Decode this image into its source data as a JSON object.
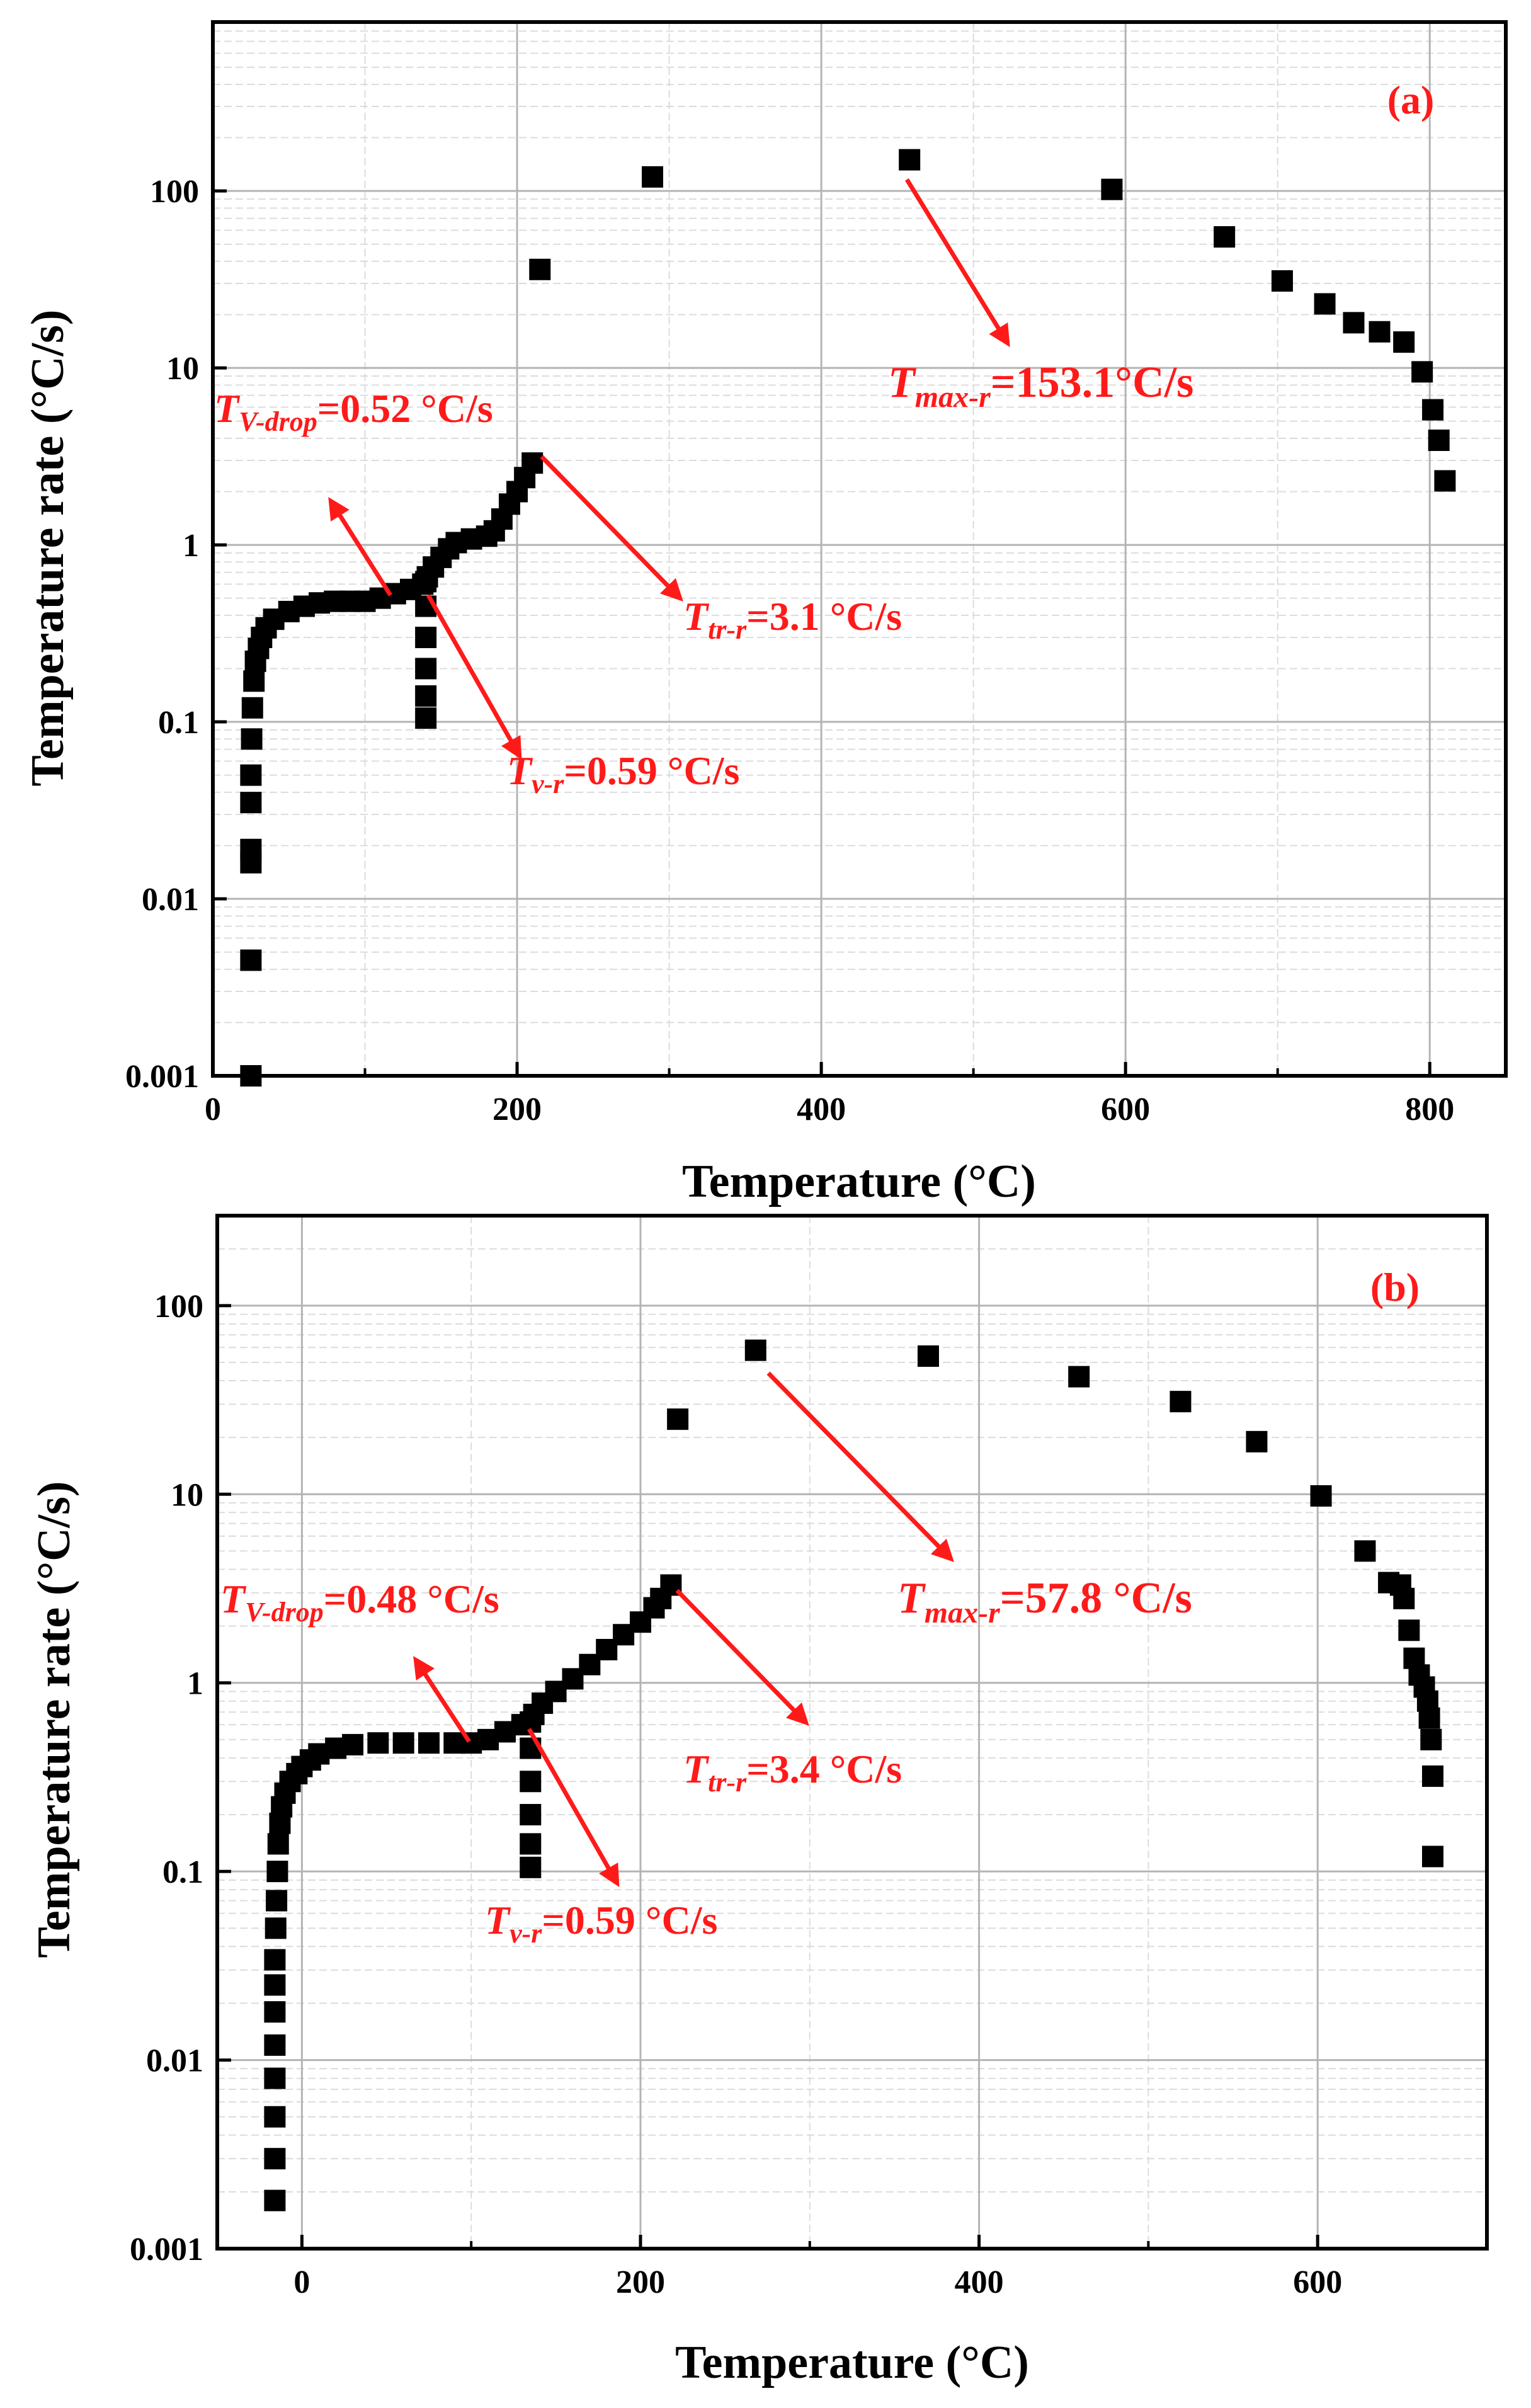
{
  "chart_data": [
    {
      "panel": "(a)",
      "type": "scatter",
      "title": "",
      "xlabel": "Temperature (°C)",
      "ylabel": "Temperature rate (°C/s)",
      "xlim": [
        0,
        850
      ],
      "yscale": "log",
      "ylim": [
        0.001,
        900
      ],
      "xticks": [
        0,
        200,
        400,
        600,
        800
      ],
      "yticks": [
        0.001,
        0.01,
        0.1,
        1,
        10,
        100
      ],
      "ytick_labels": [
        "0.001",
        "0.01",
        "0.1",
        "1",
        "10",
        "100"
      ],
      "grid": true,
      "series": [
        {
          "name": "Temperature rate",
          "marker": "square",
          "points": [
            [
              25,
              0.001
            ],
            [
              25,
              0.0045
            ],
            [
              25,
              0.016
            ],
            [
              25,
              0.019
            ],
            [
              25,
              0.035
            ],
            [
              25,
              0.05
            ],
            [
              25.5,
              0.08
            ],
            [
              26,
              0.12
            ],
            [
              27,
              0.17
            ],
            [
              28,
              0.22
            ],
            [
              30,
              0.26
            ],
            [
              32,
              0.3
            ],
            [
              35,
              0.34
            ],
            [
              40,
              0.38
            ],
            [
              50,
              0.42
            ],
            [
              60,
              0.45
            ],
            [
              70,
              0.47
            ],
            [
              80,
              0.48
            ],
            [
              90,
              0.48
            ],
            [
              100,
              0.48
            ],
            [
              110,
              0.5
            ],
            [
              120,
              0.53
            ],
            [
              130,
              0.56
            ],
            [
              138,
              0.6
            ],
            [
              140,
              0.62
            ],
            [
              140,
              0.45
            ],
            [
              140,
              0.3
            ],
            [
              140,
              0.2
            ],
            [
              140,
              0.14
            ],
            [
              140,
              0.105
            ],
            [
              141,
              0.66
            ],
            [
              145,
              0.75
            ],
            [
              150,
              0.85
            ],
            [
              155,
              0.95
            ],
            [
              160,
              1.03
            ],
            [
              170,
              1.08
            ],
            [
              180,
              1.12
            ],
            [
              185,
              1.2
            ],
            [
              190,
              1.4
            ],
            [
              195,
              1.7
            ],
            [
              200,
              2.0
            ],
            [
              205,
              2.4
            ],
            [
              210,
              2.9
            ],
            [
              215,
              36
            ],
            [
              289,
              120
            ],
            [
              458,
              150
            ],
            [
              591,
              102
            ],
            [
              665,
              55
            ],
            [
              703,
              31
            ],
            [
              731,
              23
            ],
            [
              750,
              18
            ],
            [
              767,
              16
            ],
            [
              783,
              14
            ],
            [
              795,
              9.5
            ],
            [
              802,
              5.8
            ],
            [
              806,
              3.9
            ],
            [
              810,
              2.3
            ]
          ]
        }
      ],
      "annotations": [
        {
          "symbol": "T",
          "subscript": "V-drop",
          "value": "=0.52 °C/s"
        },
        {
          "symbol": "T",
          "subscript": "tr-r",
          "value": "=3.1 °C/s"
        },
        {
          "symbol": "T",
          "subscript": "v-r",
          "value": "=0.59 °C/s"
        },
        {
          "symbol": "T",
          "subscript": "max-r",
          "value": "=153.1°C/s"
        }
      ]
    },
    {
      "panel": "(b)",
      "type": "scatter",
      "title": "",
      "xlabel": "Temperature (°C)",
      "ylabel": "Temperature rate (°C/s)",
      "xlim": [
        -50,
        700
      ],
      "yscale": "log",
      "ylim": [
        0.001,
        300
      ],
      "xticks": [
        0,
        200,
        400,
        600
      ],
      "yticks": [
        0.001,
        0.01,
        0.1,
        1,
        10,
        100
      ],
      "ytick_labels": [
        "0.001",
        "0.01",
        "0.1",
        "1",
        "10",
        "100"
      ],
      "grid": true,
      "series": [
        {
          "name": "Temperature rate",
          "marker": "square",
          "points": [
            [
              -16,
              0.0018
            ],
            [
              -16,
              0.003
            ],
            [
              -16,
              0.005
            ],
            [
              -16,
              0.008
            ],
            [
              -16,
              0.012
            ],
            [
              -16,
              0.018
            ],
            [
              -16,
              0.025
            ],
            [
              -16,
              0.034
            ],
            [
              -15.5,
              0.05
            ],
            [
              -15,
              0.07
            ],
            [
              -14.5,
              0.1
            ],
            [
              -14,
              0.14
            ],
            [
              -13,
              0.18
            ],
            [
              -12,
              0.22
            ],
            [
              -10,
              0.26
            ],
            [
              -7,
              0.3
            ],
            [
              -3,
              0.33
            ],
            [
              0,
              0.36
            ],
            [
              5,
              0.39
            ],
            [
              10,
              0.42
            ],
            [
              20,
              0.45
            ],
            [
              30,
              0.47
            ],
            [
              45,
              0.48
            ],
            [
              60,
              0.48
            ],
            [
              75,
              0.48
            ],
            [
              90,
              0.48
            ],
            [
              100,
              0.48
            ],
            [
              110,
              0.5
            ],
            [
              120,
              0.55
            ],
            [
              130,
              0.6
            ],
            [
              135,
              0.62
            ],
            [
              135,
              0.45
            ],
            [
              135,
              0.3
            ],
            [
              135,
              0.2
            ],
            [
              135,
              0.14
            ],
            [
              135,
              0.105
            ],
            [
              137,
              0.68
            ],
            [
              142,
              0.78
            ],
            [
              150,
              0.9
            ],
            [
              160,
              1.05
            ],
            [
              170,
              1.25
            ],
            [
              180,
              1.5
            ],
            [
              190,
              1.8
            ],
            [
              200,
              2.1
            ],
            [
              208,
              2.5
            ],
            [
              212,
              2.8
            ],
            [
              218,
              3.3
            ],
            [
              222,
              25
            ],
            [
              268,
              58
            ],
            [
              370,
              54
            ],
            [
              459,
              42
            ],
            [
              519,
              31
            ],
            [
              564,
              19
            ],
            [
              602,
              9.8
            ],
            [
              628,
              5.0
            ],
            [
              642,
              3.4
            ],
            [
              649,
              3.3
            ],
            [
              651,
              2.8
            ],
            [
              654,
              1.9
            ],
            [
              657,
              1.35
            ],
            [
              660,
              1.1
            ],
            [
              663,
              0.95
            ],
            [
              665,
              0.8
            ],
            [
              666,
              0.65
            ],
            [
              667,
              0.5
            ],
            [
              668,
              0.32
            ],
            [
              668,
              0.12
            ]
          ]
        }
      ],
      "annotations": [
        {
          "symbol": "T",
          "subscript": "V-drop",
          "value": "=0.48 °C/s"
        },
        {
          "symbol": "T",
          "subscript": "tr-r",
          "value": "=3.4 °C/s"
        },
        {
          "symbol": "T",
          "subscript": "v-r",
          "value": "=0.59 °C/s"
        },
        {
          "symbol": "T",
          "subscript": "max-r",
          "value": "=57.8 °C/s"
        }
      ]
    }
  ]
}
